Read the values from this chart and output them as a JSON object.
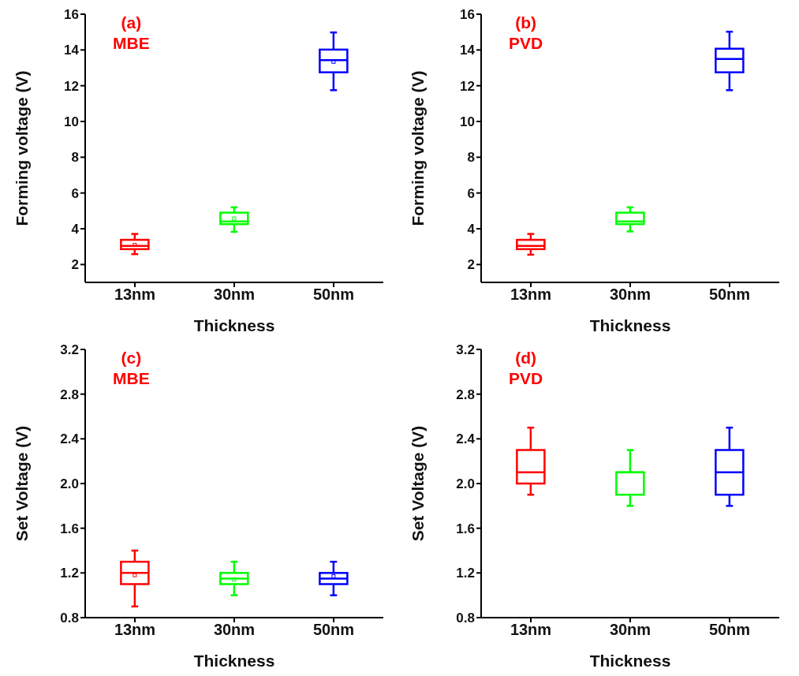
{
  "chart_data": [
    {
      "type": "box",
      "xlabel": "Thickness",
      "ylabel": "Forming voltage (V)",
      "annotations": [
        "(a)",
        "MBE"
      ],
      "categories": [
        "13nm",
        "30nm",
        "50nm"
      ],
      "colors": [
        "#ff0000",
        "#00ff00",
        "#0000ff"
      ],
      "ylim": [
        1,
        16
      ],
      "yticks": [
        2,
        4,
        6,
        8,
        10,
        12,
        14,
        16
      ],
      "boxes": [
        {
          "low": 2.58,
          "q1": 2.86,
          "median": 3.04,
          "q3": 3.38,
          "high": 3.71,
          "mean": 3.1
        },
        {
          "low": 3.83,
          "q1": 4.26,
          "median": 4.41,
          "q3": 4.9,
          "high": 5.2,
          "mean": 4.57
        },
        {
          "low": 11.75,
          "q1": 12.75,
          "median": 13.43,
          "q3": 14.02,
          "high": 14.98,
          "mean": 13.34
        }
      ]
    },
    {
      "type": "box",
      "xlabel": "Thickness",
      "ylabel": "Forming voltage (V)",
      "annotations": [
        "(b)",
        "PVD"
      ],
      "categories": [
        "13nm",
        "30nm",
        "50nm"
      ],
      "colors": [
        "#ff0000",
        "#00ff00",
        "#0000ff"
      ],
      "ylim": [
        1,
        16
      ],
      "yticks": [
        2,
        4,
        6,
        8,
        10,
        12,
        14,
        16
      ],
      "boxes": [
        {
          "low": 2.55,
          "q1": 2.86,
          "median": 3.04,
          "q3": 3.38,
          "high": 3.71
        },
        {
          "low": 3.85,
          "q1": 4.26,
          "median": 4.41,
          "q3": 4.9,
          "high": 5.2
        },
        {
          "low": 11.75,
          "q1": 12.75,
          "median": 13.5,
          "q3": 14.07,
          "high": 15.02
        }
      ]
    },
    {
      "type": "box",
      "xlabel": "Thickness",
      "ylabel": "Set Voltage (V)",
      "annotations": [
        "(c)",
        "MBE"
      ],
      "categories": [
        "13nm",
        "30nm",
        "50nm"
      ],
      "colors": [
        "#ff0000",
        "#00ff00",
        "#0000ff"
      ],
      "ylim": [
        0.8,
        3.2
      ],
      "yticks": [
        0.8,
        1.2,
        1.6,
        {
          "value": 2,
          "label": "2.0"
        },
        2.4,
        2.8,
        3.2
      ],
      "boxes": [
        {
          "low": 0.9,
          "q1": 1.1,
          "median": 1.2,
          "q3": 1.3,
          "high": 1.4,
          "mean": 1.18
        },
        {
          "low": 1.0,
          "q1": 1.1,
          "median": 1.15,
          "q3": 1.2,
          "high": 1.3,
          "mean": 1.14
        },
        {
          "low": 1.0,
          "q1": 1.1,
          "median": 1.15,
          "q3": 1.2,
          "high": 1.3,
          "mean": 1.17
        }
      ]
    },
    {
      "type": "box",
      "xlabel": "Thickness",
      "ylabel": "Set Voltage (V)",
      "annotations": [
        "(d)",
        "PVD"
      ],
      "categories": [
        "13nm",
        "30nm",
        "50nm"
      ],
      "colors": [
        "#ff0000",
        "#00ff00",
        "#0000ff"
      ],
      "ylim": [
        0.8,
        3.2
      ],
      "yticks": [
        0.8,
        1.2,
        1.6,
        {
          "value": 2,
          "label": "2.0"
        },
        2.4,
        2.8,
        3.2
      ],
      "boxes": [
        {
          "low": 1.9,
          "q1": 2.0,
          "median": 2.1,
          "q3": 2.3,
          "high": 2.5
        },
        {
          "low": 1.8,
          "q1": 1.9,
          "median": 2.1,
          "q3": 2.1,
          "high": 2.3
        },
        {
          "low": 1.8,
          "q1": 1.9,
          "median": 2.1,
          "q3": 2.3,
          "high": 2.5
        }
      ]
    }
  ]
}
